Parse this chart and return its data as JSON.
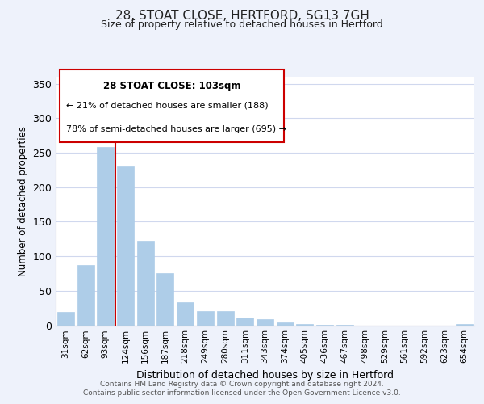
{
  "title1": "28, STOAT CLOSE, HERTFORD, SG13 7GH",
  "title2": "Size of property relative to detached houses in Hertford",
  "xlabel": "Distribution of detached houses by size in Hertford",
  "ylabel": "Number of detached properties",
  "categories": [
    "31sqm",
    "62sqm",
    "93sqm",
    "124sqm",
    "156sqm",
    "187sqm",
    "218sqm",
    "249sqm",
    "280sqm",
    "311sqm",
    "343sqm",
    "374sqm",
    "405sqm",
    "436sqm",
    "467sqm",
    "498sqm",
    "529sqm",
    "561sqm",
    "592sqm",
    "623sqm",
    "654sqm"
  ],
  "values": [
    19,
    87,
    258,
    230,
    122,
    76,
    33,
    20,
    20,
    11,
    9,
    4,
    2,
    1,
    1,
    0,
    0,
    0,
    0,
    0,
    2
  ],
  "bar_color": "#aecde8",
  "bar_edge_color": "#aecde8",
  "vline_color": "#cc0000",
  "ylim": [
    0,
    360
  ],
  "yticks": [
    0,
    50,
    100,
    150,
    200,
    250,
    300,
    350
  ],
  "annotation_title": "28 STOAT CLOSE: 103sqm",
  "annotation_line1": "← 21% of detached houses are smaller (188)",
  "annotation_line2": "78% of semi-detached houses are larger (695) →",
  "footer1": "Contains HM Land Registry data © Crown copyright and database right 2024.",
  "footer2": "Contains public sector information licensed under the Open Government Licence v3.0.",
  "background_color": "#eef2fb",
  "plot_bg_color": "#ffffff",
  "grid_color": "#d0d8ee"
}
